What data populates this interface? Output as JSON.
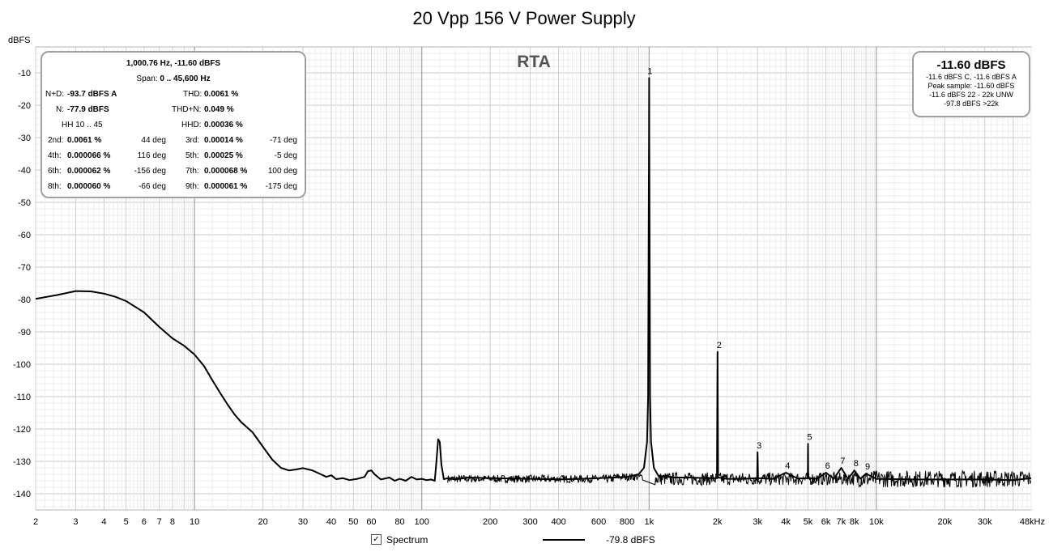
{
  "chart_data": {
    "type": "line",
    "title": "20 Vpp 156 V Power Supply",
    "watermark": "RTA",
    "ylabel": "dBFS",
    "x_scale": "log",
    "xlim": [
      2,
      48000
    ],
    "ylim": [
      -145,
      -2
    ],
    "x_ticks": [
      {
        "v": 2,
        "label": "2"
      },
      {
        "v": 3,
        "label": "3"
      },
      {
        "v": 4,
        "label": "4"
      },
      {
        "v": 5,
        "label": "5"
      },
      {
        "v": 6,
        "label": "6"
      },
      {
        "v": 7,
        "label": "7"
      },
      {
        "v": 8,
        "label": "8"
      },
      {
        "v": 10,
        "label": "10"
      },
      {
        "v": 20,
        "label": "20"
      },
      {
        "v": 30,
        "label": "30"
      },
      {
        "v": 40,
        "label": "40"
      },
      {
        "v": 50,
        "label": "50"
      },
      {
        "v": 60,
        "label": "60"
      },
      {
        "v": 80,
        "label": "80"
      },
      {
        "v": 100,
        "label": "100"
      },
      {
        "v": 200,
        "label": "200"
      },
      {
        "v": 300,
        "label": "300"
      },
      {
        "v": 400,
        "label": "400"
      },
      {
        "v": 600,
        "label": "600"
      },
      {
        "v": 800,
        "label": "800"
      },
      {
        "v": 1000,
        "label": "1k"
      },
      {
        "v": 2000,
        "label": "2k"
      },
      {
        "v": 3000,
        "label": "3k"
      },
      {
        "v": 4000,
        "label": "4k"
      },
      {
        "v": 5000,
        "label": "5k"
      },
      {
        "v": 6000,
        "label": "6k"
      },
      {
        "v": 7000,
        "label": "7k"
      },
      {
        "v": 8000,
        "label": "8k"
      },
      {
        "v": 10000,
        "label": "10k"
      },
      {
        "v": 20000,
        "label": "20k"
      },
      {
        "v": 30000,
        "label": "30k"
      },
      {
        "v": 48000,
        "label": "48kHz"
      }
    ],
    "y_ticks": [
      -10,
      -20,
      -30,
      -40,
      -50,
      -60,
      -70,
      -80,
      -90,
      -100,
      -110,
      -120,
      -130,
      -140
    ],
    "grid": true,
    "series": [
      {
        "legend_label": "Spectrum",
        "legend_value": "-79.8 dBFS",
        "color": "#000000",
        "points": [
          [
            2,
            -79.8
          ],
          [
            2.5,
            -78.6
          ],
          [
            3,
            -77.4
          ],
          [
            3.5,
            -77.5
          ],
          [
            4,
            -78.2
          ],
          [
            4.5,
            -79.2
          ],
          [
            5,
            -80.5
          ],
          [
            6,
            -84
          ],
          [
            7,
            -88.5
          ],
          [
            8,
            -92
          ],
          [
            9,
            -94.3
          ],
          [
            10,
            -97
          ],
          [
            11,
            -100.5
          ],
          [
            12,
            -105
          ],
          [
            13,
            -109
          ],
          [
            14,
            -112.5
          ],
          [
            15,
            -115.5
          ],
          [
            16,
            -117.8
          ],
          [
            18,
            -121
          ],
          [
            20,
            -125.5
          ],
          [
            22,
            -129.5
          ],
          [
            24,
            -132
          ],
          [
            26,
            -132.8
          ],
          [
            28,
            -132.5
          ],
          [
            30,
            -132.1
          ],
          [
            33,
            -132.8
          ],
          [
            36,
            -134
          ],
          [
            38,
            -134.8
          ],
          [
            40,
            -134.3
          ],
          [
            42,
            -135.5
          ],
          [
            45,
            -135.2
          ],
          [
            48,
            -135.8
          ],
          [
            52,
            -135.4
          ],
          [
            56,
            -134.8
          ],
          [
            58,
            -133
          ],
          [
            60,
            -132.8
          ],
          [
            62,
            -134
          ],
          [
            66,
            -135.6
          ],
          [
            72,
            -135
          ],
          [
            76,
            -136
          ],
          [
            80,
            -135.4
          ],
          [
            85,
            -136
          ],
          [
            90,
            -134.8
          ],
          [
            95,
            -135.6
          ],
          [
            100,
            -135.4
          ],
          [
            105,
            -135.8
          ],
          [
            110,
            -135.6
          ],
          [
            114,
            -136
          ],
          [
            116,
            -130
          ],
          [
            118,
            -123.2
          ],
          [
            120,
            -124
          ],
          [
            122,
            -131
          ],
          [
            125,
            -135.5
          ],
          [
            130,
            -135.2
          ],
          [
            140,
            -135.6
          ],
          [
            160,
            -135
          ],
          [
            200,
            -135.2
          ],
          [
            300,
            -135.4
          ],
          [
            400,
            -135.6
          ],
          [
            500,
            -135.4
          ],
          [
            600,
            -135.2
          ],
          [
            700,
            -135
          ],
          [
            800,
            -134.8
          ],
          [
            900,
            -134
          ],
          [
            950,
            -132
          ],
          [
            980,
            -124
          ],
          [
            990,
            -110
          ],
          [
            996,
            -60
          ],
          [
            999,
            -30
          ],
          [
            1000.76,
            -11.6
          ],
          [
            1002,
            -30
          ],
          [
            1005,
            -60
          ],
          [
            1010,
            -110
          ],
          [
            1020,
            -124
          ],
          [
            1050,
            -132
          ],
          [
            1100,
            -134.5
          ],
          [
            1300,
            -135
          ],
          [
            1500,
            -135
          ],
          [
            1800,
            -135.2
          ],
          [
            1990,
            -135.2
          ],
          [
            2001.5,
            -96.2
          ],
          [
            2012,
            -135
          ],
          [
            2200,
            -135.4
          ],
          [
            2600,
            -135.4
          ],
          [
            2990,
            -135.2
          ],
          [
            3002.3,
            -127.2
          ],
          [
            3015,
            -135.2
          ],
          [
            3500,
            -135.4
          ],
          [
            4003,
            -133.5
          ],
          [
            4500,
            -135.3
          ],
          [
            4990,
            -135.2
          ],
          [
            5003.8,
            -124.6
          ],
          [
            5018,
            -135.2
          ],
          [
            5500,
            -135.4
          ],
          [
            6004.6,
            -133.5
          ],
          [
            6500,
            -135.4
          ],
          [
            7005.3,
            -132
          ],
          [
            7500,
            -135.4
          ],
          [
            8006,
            -132.8
          ],
          [
            8500,
            -135.4
          ],
          [
            9006.8,
            -133.8
          ],
          [
            10000,
            -135.4
          ],
          [
            15000,
            -135.6
          ],
          [
            20000,
            -135.6
          ],
          [
            30000,
            -135.6
          ],
          [
            40000,
            -135.8
          ],
          [
            48000,
            -135.2
          ]
        ]
      }
    ],
    "harmonic_markers": [
      {
        "label": "1",
        "freq": 1000.76,
        "level": -11.6
      },
      {
        "label": "2",
        "freq": 2001.5,
        "level": -96.2
      },
      {
        "label": "3",
        "freq": 3002.3,
        "level": -127.2
      },
      {
        "label": "4",
        "freq": 4003,
        "level": -133.5
      },
      {
        "label": "5",
        "freq": 5003.8,
        "level": -124.6
      },
      {
        "label": "6",
        "freq": 6004.6,
        "level": -133.5
      },
      {
        "label": "7",
        "freq": 7005.3,
        "level": -132.0
      },
      {
        "label": "8",
        "freq": 8006,
        "level": -132.8
      },
      {
        "label": "9",
        "freq": 9006.8,
        "level": -133.8
      }
    ]
  },
  "stats_panel": {
    "line1": "1,000.76 Hz, -11.60 dBFS",
    "span_label": "Span:",
    "span_value": "0 .. 45,600 Hz",
    "nd_label": "N+D:",
    "nd_value": "-93.7 dBFS A",
    "thd_label": "THD:",
    "thd_value": "0.0061 %",
    "n_label": "N:",
    "n_value": "-77.9 dBFS",
    "thdn_label": "THD+N:",
    "thdn_value": "0.049 %",
    "hh_label": "HH 10 .. 45",
    "hhd_label": "HHD:",
    "hhd_value": "0.00036 %",
    "harmonics": [
      {
        "l1": "2nd:",
        "v1": "0.0061 %",
        "d1": "44 deg",
        "l2": "3rd:",
        "v2": "0.00014 %",
        "d2": "-71 deg"
      },
      {
        "l1": "4th:",
        "v1": "0.000066 %",
        "d1": "116 deg",
        "l2": "5th:",
        "v2": "0.00025 %",
        "d2": "-5 deg"
      },
      {
        "l1": "6th:",
        "v1": "0.000062 %",
        "d1": "-156 deg",
        "l2": "7th:",
        "v2": "0.000068 %",
        "d2": "100 deg"
      },
      {
        "l1": "8th:",
        "v1": "0.000060 %",
        "d1": "-66 deg",
        "l2": "9th:",
        "v2": "0.000061 %",
        "d2": "-175 deg"
      }
    ]
  },
  "level_panel": {
    "main": "-11.60 dBFS",
    "line1": "-11.6 dBFS C, -11.6 dBFS A",
    "line2": "Peak sample: -11.60 dBFS",
    "line3": "-11.6 dBFS 22 - 22k UNW",
    "line4": "-97.8 dBFS >22k"
  },
  "legend": {
    "checkbox_mark": "✓",
    "label": "Spectrum",
    "value": "-79.8 dBFS"
  }
}
